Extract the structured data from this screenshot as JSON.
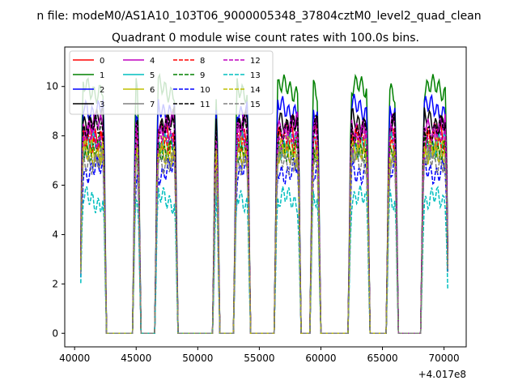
{
  "figure": {
    "suptitle": "n file: modeM0/AS1A10_103T06_9000005348_37804cztM0_level2_quad_clean",
    "title": "Quadrant 0 module wise count rates with 100.0s bins.",
    "x_offset_label": "+4.017e8"
  },
  "chart_data": {
    "type": "line",
    "title": "Quadrant 0 module wise count rates with 100.0s bins.",
    "xlabel": "",
    "ylabel": "",
    "x_offset": 401700000,
    "xlim": [
      39200,
      71800
    ],
    "ylim": [
      -0.55,
      11.6
    ],
    "x_ticks": [
      40000,
      45000,
      50000,
      55000,
      60000,
      65000,
      70000
    ],
    "x_tick_labels": [
      "40000",
      "45000",
      "50000",
      "55000",
      "60000",
      "65000",
      "70000"
    ],
    "y_ticks": [
      0,
      2,
      4,
      6,
      8,
      10
    ],
    "y_tick_labels": [
      "0",
      "2",
      "4",
      "6",
      "8",
      "10"
    ],
    "grid": false,
    "legend_position": "top-left",
    "legend_columns": 4,
    "bin_seconds": 100.0,
    "segments": [
      {
        "start": 40500,
        "end": 42500
      },
      {
        "start": 44800,
        "end": 45300
      },
      {
        "start": 46600,
        "end": 48300
      },
      {
        "start": 51300,
        "end": 51700
      },
      {
        "start": 53000,
        "end": 54200
      },
      {
        "start": 56300,
        "end": 58300
      },
      {
        "start": 59200,
        "end": 59900
      },
      {
        "start": 62300,
        "end": 63900
      },
      {
        "start": 65400,
        "end": 66200
      },
      {
        "start": 68200,
        "end": 70300
      }
    ],
    "series": [
      {
        "name": "0",
        "color": "#ff0000",
        "dash": "solid",
        "level": 8.0
      },
      {
        "name": "1",
        "color": "#008000",
        "dash": "solid",
        "level": 9.9
      },
      {
        "name": "2",
        "color": "#0000ff",
        "dash": "solid",
        "level": 9.1
      },
      {
        "name": "3",
        "color": "#000000",
        "dash": "solid",
        "level": 8.6
      },
      {
        "name": "4",
        "color": "#bf00bf",
        "dash": "solid",
        "level": 8.4
      },
      {
        "name": "5",
        "color": "#00bfbf",
        "dash": "solid",
        "level": 7.6
      },
      {
        "name": "6",
        "color": "#bfbf00",
        "dash": "solid",
        "level": 7.4
      },
      {
        "name": "7",
        "color": "#808080",
        "dash": "solid",
        "level": 7.2
      },
      {
        "name": "8",
        "color": "#ff0000",
        "dash": "dashed",
        "level": 7.8
      },
      {
        "name": "9",
        "color": "#008000",
        "dash": "dashed",
        "level": 7.5
      },
      {
        "name": "10",
        "color": "#0000ff",
        "dash": "dashed",
        "level": 6.6
      },
      {
        "name": "11",
        "color": "#000000",
        "dash": "dashed",
        "level": 8.3
      },
      {
        "name": "12",
        "color": "#bf00bf",
        "dash": "dashed",
        "level": 7.9
      },
      {
        "name": "13",
        "color": "#00bfbf",
        "dash": "dashed",
        "level": 5.4
      },
      {
        "name": "14",
        "color": "#bfbf00",
        "dash": "dashed",
        "level": 7.3
      },
      {
        "name": "15",
        "color": "#808080",
        "dash": "dashed",
        "level": 7.0
      }
    ]
  }
}
